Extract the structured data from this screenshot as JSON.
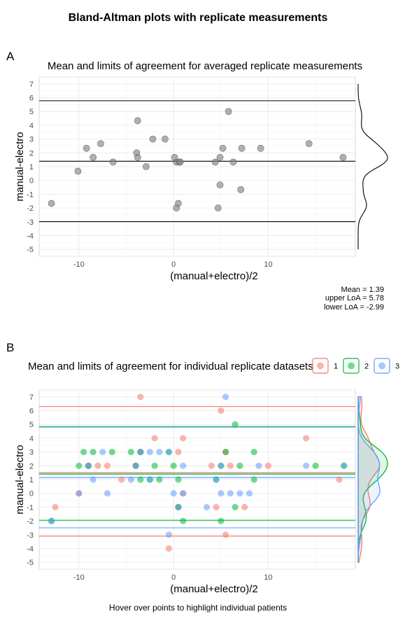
{
  "title": "Bland-Altman plots with replicate measurements",
  "footer": "Hover over points to highlight individual patients",
  "stats": {
    "mean_label": "Mean = 1.39",
    "upper_label": "upper LoA = 5.78",
    "lower_label": "lower LoA = -2.99"
  },
  "colors": {
    "background": "#ffffff",
    "grid_major": "#ebebeb",
    "grid_minor": "#f3f3f3",
    "avg_points": "#808080",
    "series_1": "#F8766D",
    "series_2": "#00BA38",
    "series_3": "#619CFF"
  },
  "chart_data": [
    {
      "type": "scatter",
      "panel_tag": "A",
      "title": "Mean and limits of agreement for averaged replicate measurements",
      "xlabel": "(manual+electro)/2",
      "ylabel": "manual-electro",
      "xlim": [
        -14.2,
        19.2
      ],
      "ylim": [
        -5.5,
        7.5
      ],
      "xticks": [
        -10,
        0,
        10
      ],
      "yticks": [
        -5,
        -4,
        -3,
        -2,
        -1,
        0,
        1,
        2,
        3,
        4,
        5,
        6,
        7
      ],
      "grid": true,
      "marginal_density": "right",
      "hlines": [
        {
          "name": "mean",
          "y": 1.39
        },
        {
          "name": "upper LoA",
          "y": 5.78
        },
        {
          "name": "lower LoA",
          "y": -2.99
        }
      ],
      "points": [
        {
          "x": -12.9,
          "y": -1.67
        },
        {
          "x": -10.1,
          "y": 0.67
        },
        {
          "x": -9.2,
          "y": 2.33
        },
        {
          "x": -8.5,
          "y": 1.67
        },
        {
          "x": -7.7,
          "y": 2.67
        },
        {
          "x": -6.4,
          "y": 1.33
        },
        {
          "x": -3.9,
          "y": 2.0
        },
        {
          "x": -3.8,
          "y": 4.33
        },
        {
          "x": -3.8,
          "y": 1.67
        },
        {
          "x": -2.9,
          "y": 1.0
        },
        {
          "x": -2.2,
          "y": 3.0
        },
        {
          "x": -0.9,
          "y": 3.0
        },
        {
          "x": 0.1,
          "y": 1.67
        },
        {
          "x": 0.3,
          "y": 1.33
        },
        {
          "x": 0.3,
          "y": -2.0
        },
        {
          "x": 0.5,
          "y": -1.67
        },
        {
          "x": 0.6,
          "y": 1.33
        },
        {
          "x": 0.7,
          "y": 1.33
        },
        {
          "x": 4.4,
          "y": 1.33
        },
        {
          "x": 4.7,
          "y": -2.0
        },
        {
          "x": 4.9,
          "y": -0.33
        },
        {
          "x": 4.9,
          "y": 1.67
        },
        {
          "x": 5.2,
          "y": 2.33
        },
        {
          "x": 5.8,
          "y": 5.0
        },
        {
          "x": 6.3,
          "y": 1.33
        },
        {
          "x": 7.1,
          "y": -0.67
        },
        {
          "x": 7.2,
          "y": 2.33
        },
        {
          "x": 9.2,
          "y": 2.33
        },
        {
          "x": 14.3,
          "y": 2.67
        },
        {
          "x": 17.9,
          "y": 1.67
        }
      ]
    },
    {
      "type": "scatter",
      "panel_tag": "B",
      "title": "Mean and limits of agreement for individual replicate datasets",
      "xlabel": "(manual+electro)/2",
      "ylabel": "manual-electro",
      "xlim": [
        -14.2,
        19.2
      ],
      "ylim": [
        -5.5,
        7.5
      ],
      "xticks": [
        -10,
        0,
        10
      ],
      "yticks": [
        -5,
        -4,
        -3,
        -2,
        -1,
        0,
        1,
        2,
        3,
        4,
        5,
        6,
        7
      ],
      "grid": true,
      "legend_position": "top-right",
      "marginal_density": "right",
      "series": [
        {
          "name": "1",
          "color": "#F8766D",
          "mean": 1.5,
          "upper_loa": 6.3,
          "lower_loa": -3.1,
          "points": [
            {
              "x": -12.5,
              "y": -1
            },
            {
              "x": -10,
              "y": 0
            },
            {
              "x": -9,
              "y": 2
            },
            {
              "x": -8,
              "y": 2
            },
            {
              "x": -7,
              "y": 2
            },
            {
              "x": -5.5,
              "y": 1
            },
            {
              "x": -4,
              "y": 2
            },
            {
              "x": -3.5,
              "y": 7
            },
            {
              "x": -3.5,
              "y": 3
            },
            {
              "x": -2,
              "y": 4
            },
            {
              "x": -0.5,
              "y": -4
            },
            {
              "x": 0.5,
              "y": 3
            },
            {
              "x": 1,
              "y": 4
            },
            {
              "x": 0.5,
              "y": -1
            },
            {
              "x": 1,
              "y": 0
            },
            {
              "x": 4,
              "y": 2
            },
            {
              "x": 4.5,
              "y": -1
            },
            {
              "x": 5,
              "y": 6
            },
            {
              "x": 5.5,
              "y": 3
            },
            {
              "x": 6,
              "y": 2
            },
            {
              "x": 7.5,
              "y": -1
            },
            {
              "x": 5.5,
              "y": -3
            },
            {
              "x": 10,
              "y": 2
            },
            {
              "x": 14,
              "y": 4
            },
            {
              "x": 17.5,
              "y": 1
            }
          ]
        },
        {
          "name": "2",
          "color": "#00BA38",
          "mean": 1.4,
          "upper_loa": 4.85,
          "lower_loa": -1.95,
          "points": [
            {
              "x": -12.9,
              "y": -2
            },
            {
              "x": -10,
              "y": 2
            },
            {
              "x": -9.5,
              "y": 3
            },
            {
              "x": -8.5,
              "y": 3
            },
            {
              "x": -9,
              "y": 2
            },
            {
              "x": -6.5,
              "y": 3
            },
            {
              "x": -4.5,
              "y": 3
            },
            {
              "x": -4,
              "y": 2
            },
            {
              "x": -3.5,
              "y": 3
            },
            {
              "x": -3.5,
              "y": 1
            },
            {
              "x": -2.5,
              "y": 1
            },
            {
              "x": -2,
              "y": 2
            },
            {
              "x": -1.5,
              "y": 1
            },
            {
              "x": -0.5,
              "y": 3
            },
            {
              "x": 0,
              "y": 2
            },
            {
              "x": 0.5,
              "y": 1
            },
            {
              "x": 0.5,
              "y": -1
            },
            {
              "x": 1,
              "y": -2
            },
            {
              "x": 4.5,
              "y": 1
            },
            {
              "x": 5,
              "y": 2
            },
            {
              "x": 5,
              "y": -2
            },
            {
              "x": 5.5,
              "y": 3
            },
            {
              "x": 6.5,
              "y": 5
            },
            {
              "x": 6.5,
              "y": -1
            },
            {
              "x": 7,
              "y": 2
            },
            {
              "x": 8.5,
              "y": 3
            },
            {
              "x": 8.5,
              "y": 1
            },
            {
              "x": 15,
              "y": 2
            },
            {
              "x": 18,
              "y": 2
            }
          ]
        },
        {
          "name": "3",
          "color": "#619CFF",
          "mean": 1.15,
          "upper_loa": 4.8,
          "lower_loa": -2.5,
          "points": [
            {
              "x": -12.9,
              "y": -2
            },
            {
              "x": -10,
              "y": 0
            },
            {
              "x": -9,
              "y": 2
            },
            {
              "x": -8.5,
              "y": 1
            },
            {
              "x": -7.5,
              "y": 3
            },
            {
              "x": -7,
              "y": 0
            },
            {
              "x": -4.5,
              "y": 1
            },
            {
              "x": -4,
              "y": 2
            },
            {
              "x": -3.5,
              "y": 3
            },
            {
              "x": -2.5,
              "y": 3
            },
            {
              "x": -2.5,
              "y": 1
            },
            {
              "x": -1.5,
              "y": 3
            },
            {
              "x": -0.5,
              "y": 3
            },
            {
              "x": -0.5,
              "y": -3
            },
            {
              "x": 0,
              "y": 0
            },
            {
              "x": 1,
              "y": 2
            },
            {
              "x": 1,
              "y": 0
            },
            {
              "x": 0.5,
              "y": -1
            },
            {
              "x": 3.5,
              "y": -1
            },
            {
              "x": 4.5,
              "y": 1
            },
            {
              "x": 5,
              "y": 2
            },
            {
              "x": 5,
              "y": 0
            },
            {
              "x": 5.5,
              "y": 7
            },
            {
              "x": 6,
              "y": 0
            },
            {
              "x": 7,
              "y": 0
            },
            {
              "x": 8,
              "y": 0
            },
            {
              "x": 9,
              "y": 2
            },
            {
              "x": 14,
              "y": 2
            },
            {
              "x": 18,
              "y": 2
            }
          ]
        }
      ]
    }
  ]
}
